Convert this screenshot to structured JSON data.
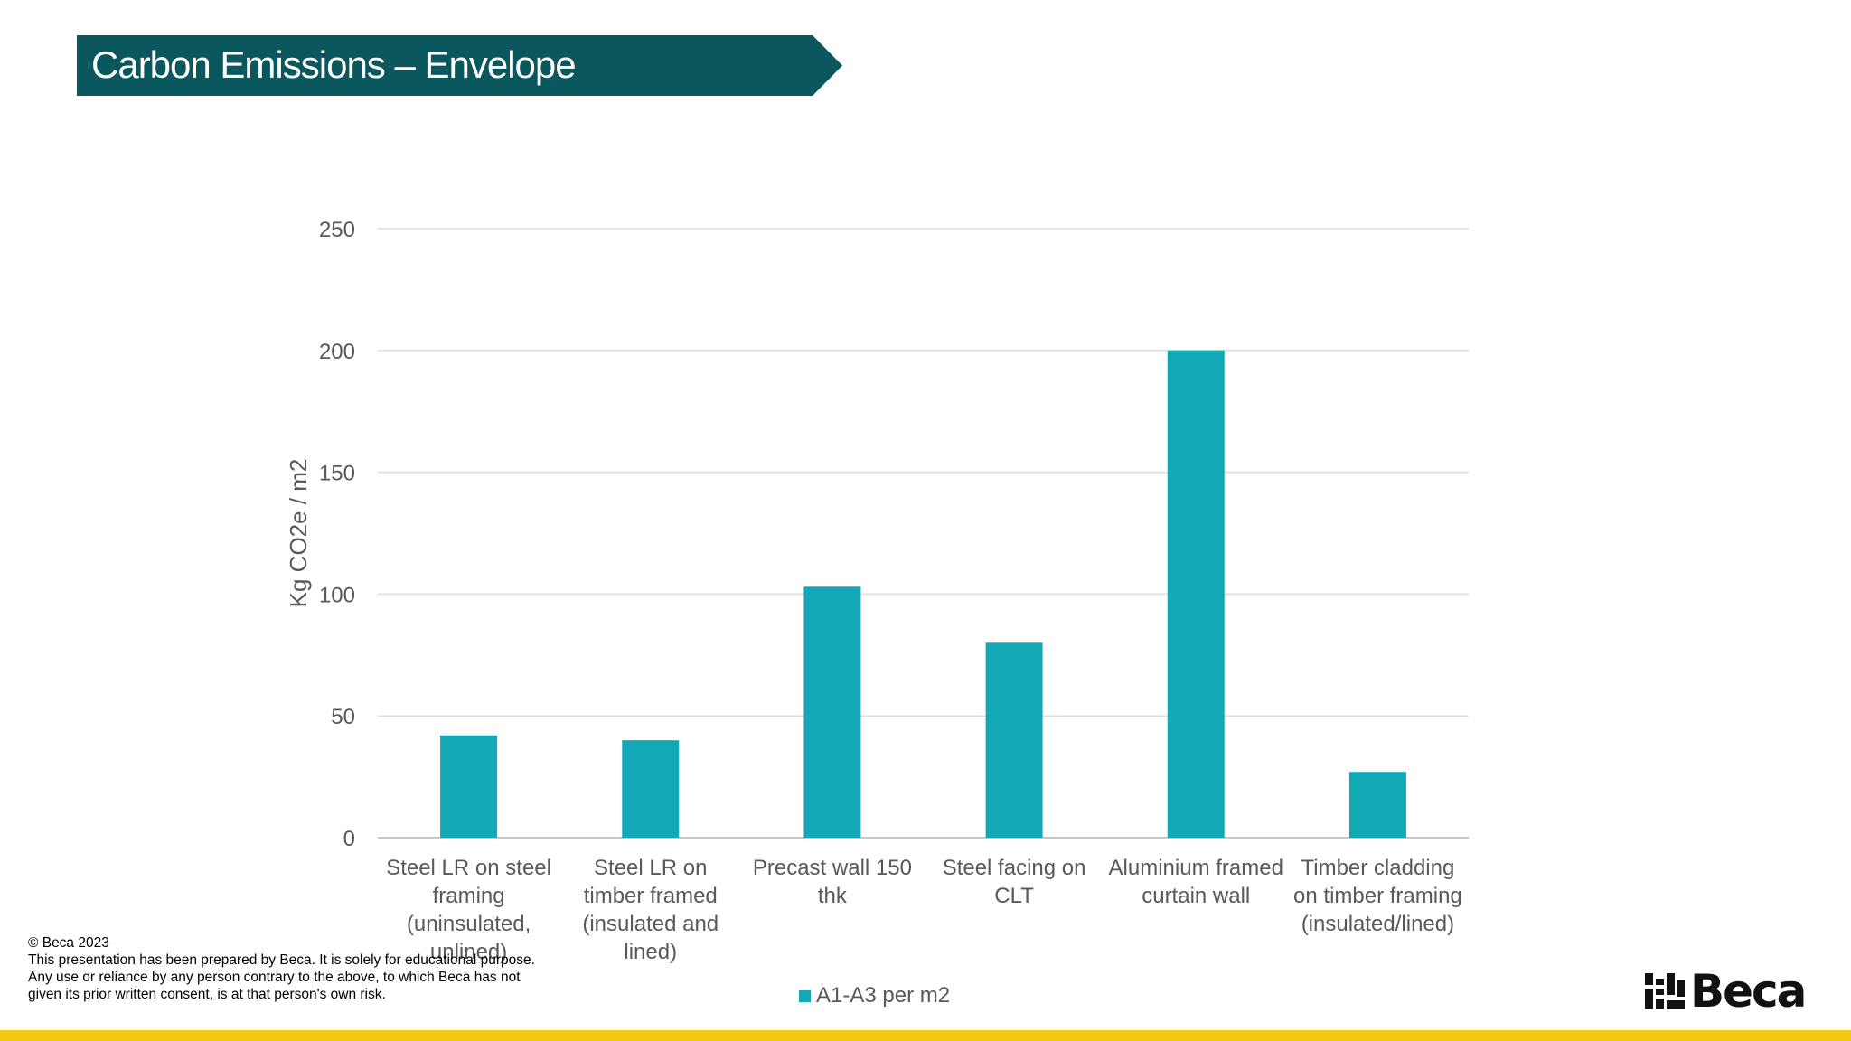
{
  "slide": {
    "title": "Carbon Emissions – Envelope",
    "banner_color": "#0b575e",
    "accent_bar_color": "#f2c811"
  },
  "chart_data": {
    "type": "bar",
    "title": "",
    "xlabel": "",
    "ylabel": "Kg CO2e / m2",
    "ylim": [
      0,
      250
    ],
    "yticks": [
      0,
      50,
      100,
      150,
      200,
      250
    ],
    "grid": true,
    "legend_position": "bottom",
    "categories": [
      "Steel LR on steel framing (uninsulated, unlined)",
      "Steel LR on timber framed (insulated and lined)",
      "Precast wall 150 thk",
      "Steel facing on CLT",
      "Aluminium framed curtain wall",
      "Timber cladding on timber framing (insulated/lined)"
    ],
    "category_lines": [
      [
        "Steel LR on steel",
        "framing",
        "(uninsulated,",
        "unlined)"
      ],
      [
        "Steel LR on",
        "timber framed",
        "(insulated and",
        "lined)"
      ],
      [
        "Precast wall 150",
        "thk"
      ],
      [
        "Steel facing on",
        "CLT"
      ],
      [
        "Aluminium framed",
        "curtain wall"
      ],
      [
        "Timber cladding",
        "on timber framing",
        "(insulated/lined)"
      ]
    ],
    "series": [
      {
        "name": "A1-A3 per m2",
        "color": "#13a8b5",
        "values": [
          42,
          40,
          103,
          80,
          200,
          27
        ]
      }
    ]
  },
  "footer": {
    "copyright": "© Beca 2023",
    "line1": "This presentation has been prepared by Beca. It is solely for  educational purpose.",
    "line2": "Any use or reliance by any person contrary to the above, to which Beca has not",
    "line3": "given its prior written consent, is at that person's own risk."
  },
  "logo": {
    "name": "beca-logo",
    "wordmark": "Beca"
  }
}
